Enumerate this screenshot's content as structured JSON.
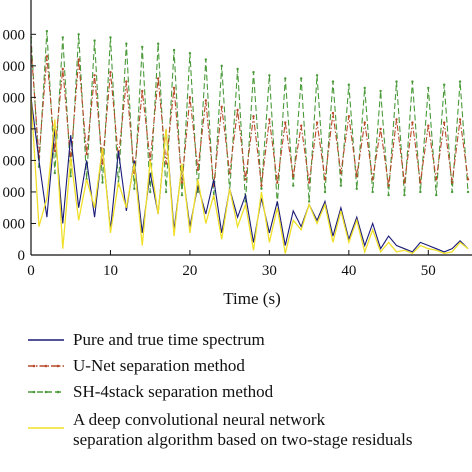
{
  "chart_data": {
    "type": "line",
    "title": "",
    "xlabel": "Time (s)",
    "ylabel": "",
    "xlim": [
      0,
      55
    ],
    "ylim": [
      0,
      8000
    ],
    "xticks": [
      0,
      10,
      20,
      30,
      40,
      50
    ],
    "xtick_labels": [
      "0",
      "10",
      "20",
      "30",
      "40",
      "50"
    ],
    "yticks": [
      0,
      1000,
      2000,
      3000,
      4000,
      5000,
      6000,
      7000
    ],
    "ytick_labels": [
      "0",
      "000",
      "000",
      "000",
      "000",
      "000",
      "000",
      "000"
    ],
    "grid": false,
    "legend_position": "bottom",
    "series": [
      {
        "name": "Pure and true time spectrum",
        "color": "#1a1a7a",
        "dash": "solid",
        "x": [
          0,
          1,
          2,
          3,
          4,
          5,
          6,
          7,
          8,
          9,
          10,
          11,
          12,
          13,
          14,
          15,
          16,
          17,
          18,
          19,
          20,
          21,
          22,
          23,
          24,
          25,
          26,
          27,
          28,
          29,
          30,
          31,
          32,
          33,
          34,
          35,
          36,
          37,
          38,
          39,
          40,
          41,
          42,
          43,
          44,
          45,
          46,
          47,
          48,
          49,
          50,
          51,
          52,
          53,
          54,
          55
        ],
        "y": [
          5000,
          3000,
          1200,
          4000,
          1000,
          3800,
          1500,
          3000,
          1200,
          3400,
          800,
          3300,
          1400,
          3000,
          700,
          2600,
          1300,
          4000,
          800,
          2800,
          900,
          2200,
          1300,
          2400,
          700,
          2100,
          1200,
          1900,
          400,
          1800,
          700,
          1700,
          300,
          1400,
          900,
          1600,
          1100,
          1700,
          600,
          1500,
          500,
          1200,
          300,
          1000,
          200,
          600,
          300,
          200,
          100,
          400,
          300,
          200,
          100,
          200,
          450,
          200
        ]
      },
      {
        "name": "U-Net separation method",
        "color": "#b84a2a",
        "dash": "dashdot",
        "x": [
          0,
          1,
          2,
          3,
          4,
          5,
          6,
          7,
          8,
          9,
          10,
          11,
          12,
          13,
          14,
          15,
          16,
          17,
          18,
          19,
          20,
          21,
          22,
          23,
          24,
          25,
          26,
          27,
          28,
          29,
          30,
          31,
          32,
          33,
          34,
          35,
          36,
          37,
          38,
          39,
          40,
          41,
          42,
          43,
          44,
          45,
          46,
          47,
          48,
          49,
          50,
          51,
          52,
          53,
          54,
          55
        ],
        "y": [
          6600,
          3100,
          6300,
          3300,
          5900,
          3000,
          6200,
          3200,
          5700,
          2900,
          5800,
          3100,
          5500,
          2600,
          5200,
          3000,
          5600,
          2900,
          5300,
          2300,
          5000,
          2700,
          4900,
          2200,
          4700,
          2600,
          4600,
          2400,
          4400,
          2200,
          4300,
          2300,
          4200,
          2500,
          4100,
          2300,
          4200,
          2400,
          4500,
          2600,
          4400,
          2500,
          4200,
          2400,
          4000,
          2200,
          4300,
          2300,
          4200,
          2300,
          4100,
          2400,
          4200,
          2300,
          4300,
          2400
        ]
      },
      {
        "name": "SH-4stack separation method",
        "color": "#4a9a3a",
        "dash": "dashed",
        "x": [
          0,
          1,
          2,
          3,
          4,
          5,
          6,
          7,
          8,
          9,
          10,
          11,
          12,
          13,
          14,
          15,
          16,
          17,
          18,
          19,
          20,
          21,
          22,
          23,
          24,
          25,
          26,
          27,
          28,
          29,
          30,
          31,
          32,
          33,
          34,
          35,
          36,
          37,
          38,
          39,
          40,
          41,
          42,
          43,
          44,
          45,
          46,
          47,
          48,
          49,
          50,
          51,
          52,
          53,
          54,
          55
        ],
        "y": [
          6900,
          2800,
          7100,
          2600,
          6900,
          2500,
          7000,
          2400,
          6800,
          2300,
          6900,
          2200,
          6700,
          2100,
          6600,
          2000,
          6700,
          2000,
          6500,
          1900,
          6400,
          2000,
          6200,
          1800,
          6000,
          2000,
          5900,
          1700,
          5800,
          2100,
          5700,
          1600,
          5600,
          2200,
          5600,
          1700,
          5700,
          2000,
          5500,
          2200,
          5400,
          2100,
          5300,
          2000,
          5200,
          1900,
          5500,
          1900,
          5500,
          2000,
          5300,
          1900,
          5400,
          2000,
          5500,
          2000
        ]
      },
      {
        "name": "A deep convolutional neural network separation algorithm based on two-stage residuals",
        "color": "#f0e02a",
        "dash": "solid",
        "x": [
          0,
          1,
          2,
          3,
          4,
          5,
          6,
          7,
          8,
          9,
          10,
          11,
          12,
          13,
          14,
          15,
          16,
          17,
          18,
          19,
          20,
          21,
          22,
          23,
          24,
          25,
          26,
          27,
          28,
          29,
          30,
          31,
          32,
          33,
          34,
          35,
          36,
          37,
          38,
          39,
          40,
          41,
          42,
          43,
          44,
          45,
          46,
          47,
          48,
          49,
          50,
          51,
          52,
          53,
          54,
          55
        ],
        "y": [
          5000,
          900,
          1800,
          4300,
          200,
          3100,
          1100,
          2400,
          1500,
          3400,
          700,
          2300,
          1500,
          2900,
          300,
          3000,
          1300,
          4000,
          600,
          2900,
          700,
          2400,
          1000,
          1900,
          500,
          2100,
          900,
          1600,
          150,
          2000,
          400,
          1500,
          50,
          1100,
          800,
          1600,
          1000,
          1600,
          400,
          1400,
          400,
          1100,
          100,
          800,
          100,
          400,
          100,
          150,
          50,
          300,
          200,
          150,
          50,
          100,
          400,
          200
        ]
      }
    ]
  }
}
